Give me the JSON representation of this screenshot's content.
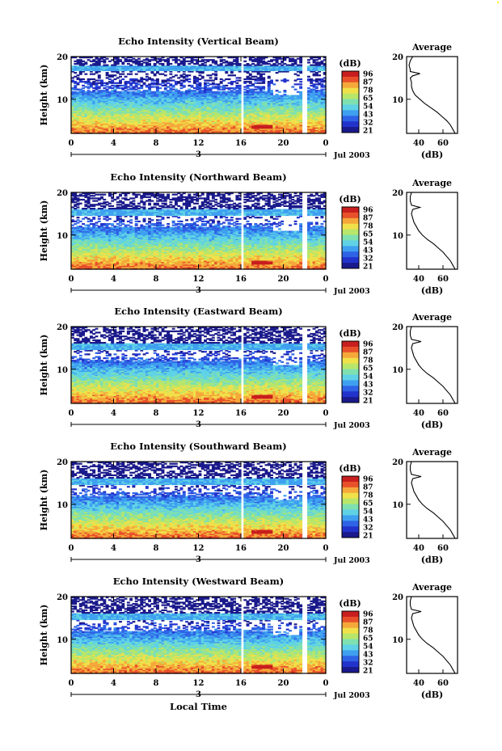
{
  "colors": {
    "scale": [
      "#1a1a8c",
      "#2233cc",
      "#2f63e6",
      "#3fa0f0",
      "#5fd2e6",
      "#7fe0b0",
      "#b8e66a",
      "#f0e04a",
      "#f5a83a",
      "#e8502a",
      "#c81e1e"
    ],
    "profile_line": "#000000",
    "background": "#ffffff"
  },
  "figure": {
    "xlabel": "Local Time",
    "date_label": "Jul 2003",
    "day_marker": "3",
    "x_ticks": [
      "0",
      "4",
      "8",
      "12",
      "16",
      "20",
      "0"
    ],
    "y_ticks": [
      "20",
      "10"
    ],
    "ylabel": "Height (km)",
    "colorbar_unit": "(dB)",
    "colorbar_ticks": [
      "96",
      "87",
      "78",
      "65",
      "54",
      "43",
      "32",
      "21"
    ],
    "profile_title": "Average",
    "profile_xlabel": "(dB)"
  },
  "chart_data": [
    {
      "type": "heatmap",
      "title": "Echo Intensity (Vertical Beam)",
      "xlabel": "Local Time",
      "ylabel": "Height (km)",
      "xlim": [
        0,
        24
      ],
      "ylim": [
        2,
        20
      ],
      "colorbar": {
        "label": "(dB)",
        "ticks": [
          96,
          87,
          78,
          65,
          54,
          43,
          32,
          21
        ]
      },
      "data_gaps_hours": [
        [
          15.9,
          16.3
        ],
        [
          21.8,
          22.2
        ]
      ],
      "clear_height_km": 16.5,
      "profile": {
        "title": "Average",
        "xlabel": "(dB)",
        "xticks": [
          40,
          60
        ],
        "yticks": [
          10,
          20
        ],
        "xlim": [
          30,
          72
        ],
        "heights": [
          2,
          3,
          4,
          5,
          6,
          7,
          8,
          9,
          10,
          11,
          12,
          13,
          14,
          15,
          15.5,
          16,
          16.5,
          17,
          18,
          19,
          20
        ],
        "values": [
          70,
          68,
          66,
          63,
          59,
          55,
          50,
          45,
          41,
          37,
          35,
          34,
          34,
          33,
          35,
          41,
          33,
          33,
          32,
          33,
          35
        ]
      }
    },
    {
      "type": "heatmap",
      "title": "Echo Intensity (Northward Beam)",
      "xlabel": "Local Time",
      "ylabel": "Height (km)",
      "xlim": [
        0,
        24
      ],
      "ylim": [
        2,
        20
      ],
      "colorbar": {
        "label": "(dB)",
        "ticks": [
          96,
          87,
          78,
          65,
          54,
          43,
          32,
          21
        ]
      },
      "data_gaps_hours": [
        [
          15.9,
          16.3
        ],
        [
          21.8,
          22.2
        ]
      ],
      "clear_height_km": 14.5,
      "profile": {
        "title": "Average",
        "xlabel": "(dB)",
        "xticks": [
          40,
          60
        ],
        "yticks": [
          10,
          20
        ],
        "xlim": [
          30,
          72
        ],
        "heights": [
          2,
          3,
          4,
          5,
          6,
          7,
          8,
          9,
          10,
          11,
          12,
          13,
          14,
          15,
          16,
          16.5,
          17,
          18,
          19,
          20
        ],
        "values": [
          70,
          68,
          66,
          63,
          60,
          56,
          52,
          47,
          43,
          40,
          38,
          36,
          35,
          34,
          35,
          41,
          34,
          33,
          33,
          34
        ]
      }
    },
    {
      "type": "heatmap",
      "title": "Echo Intensity (Eastward Beam)",
      "xlabel": "Local Time",
      "ylabel": "Height (km)",
      "xlim": [
        0,
        24
      ],
      "ylim": [
        2,
        20
      ],
      "colorbar": {
        "label": "(dB)",
        "ticks": [
          96,
          87,
          78,
          65,
          54,
          43,
          32,
          21
        ]
      },
      "data_gaps_hours": [
        [
          15.9,
          16.3
        ],
        [
          21.8,
          22.2
        ]
      ],
      "clear_height_km": 14.5,
      "profile": {
        "title": "Average",
        "xlabel": "(dB)",
        "xticks": [
          40,
          60
        ],
        "yticks": [
          10,
          20
        ],
        "xlim": [
          30,
          72
        ],
        "heights": [
          2,
          3,
          4,
          5,
          6,
          7,
          8,
          9,
          10,
          11,
          12,
          13,
          14,
          15,
          16,
          16.5,
          17,
          18,
          19,
          20
        ],
        "values": [
          70,
          68,
          66,
          63,
          60,
          56,
          52,
          47,
          43,
          40,
          38,
          36,
          35,
          34,
          35,
          42,
          34,
          33,
          33,
          34
        ]
      }
    },
    {
      "type": "heatmap",
      "title": "Echo Intensity (Southward Beam)",
      "xlabel": "Local Time",
      "ylabel": "Height (km)",
      "xlim": [
        0,
        24
      ],
      "ylim": [
        2,
        20
      ],
      "colorbar": {
        "label": "(dB)",
        "ticks": [
          96,
          87,
          78,
          65,
          54,
          43,
          32,
          21
        ]
      },
      "data_gaps_hours": [
        [
          15.9,
          16.3
        ],
        [
          21.8,
          22.2
        ]
      ],
      "clear_height_km": 14.5,
      "profile": {
        "title": "Average",
        "xlabel": "(dB)",
        "xticks": [
          40,
          60
        ],
        "yticks": [
          10,
          20
        ],
        "xlim": [
          30,
          72
        ],
        "heights": [
          2,
          3,
          4,
          5,
          6,
          7,
          8,
          9,
          10,
          11,
          12,
          13,
          14,
          15,
          16,
          16.5,
          17,
          18,
          19,
          20
        ],
        "values": [
          70,
          68,
          66,
          63,
          60,
          56,
          52,
          47,
          43,
          40,
          38,
          36,
          35,
          34,
          35,
          42,
          34,
          33,
          33,
          34
        ]
      }
    },
    {
      "type": "heatmap",
      "title": "Echo Intensity (Westward Beam)",
      "xlabel": "Local Time",
      "ylabel": "Height (km)",
      "xlim": [
        0,
        24
      ],
      "ylim": [
        2,
        20
      ],
      "colorbar": {
        "label": "(dB)",
        "ticks": [
          96,
          87,
          78,
          65,
          54,
          43,
          32,
          21
        ]
      },
      "data_gaps_hours": [
        [
          15.9,
          16.3
        ],
        [
          21.8,
          22.2
        ]
      ],
      "clear_height_km": 14.5,
      "profile": {
        "title": "Average",
        "xlabel": "(dB)",
        "xticks": [
          40,
          60
        ],
        "yticks": [
          10,
          20
        ],
        "xlim": [
          30,
          72
        ],
        "heights": [
          2,
          3,
          4,
          5,
          6,
          7,
          8,
          9,
          10,
          11,
          12,
          13,
          14,
          15,
          16,
          16.5,
          17,
          18,
          19,
          20
        ],
        "values": [
          70,
          68,
          66,
          63,
          60,
          56,
          52,
          47,
          43,
          40,
          38,
          36,
          35,
          34,
          35,
          42,
          34,
          33,
          33,
          34
        ]
      }
    }
  ]
}
